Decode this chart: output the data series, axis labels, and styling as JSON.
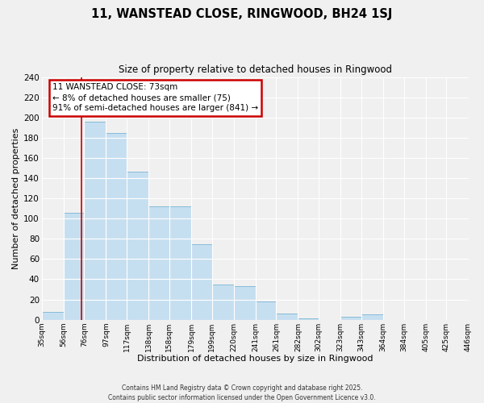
{
  "title": "11, WANSTEAD CLOSE, RINGWOOD, BH24 1SJ",
  "subtitle": "Size of property relative to detached houses in Ringwood",
  "xlabel": "Distribution of detached houses by size in Ringwood",
  "ylabel": "Number of detached properties",
  "bin_edges": [
    35,
    56,
    76,
    97,
    117,
    138,
    158,
    179,
    199,
    220,
    241,
    261,
    282,
    302,
    323,
    343,
    364,
    384,
    405,
    425,
    446
  ],
  "bar_heights": [
    8,
    106,
    196,
    185,
    146,
    112,
    112,
    75,
    35,
    33,
    18,
    6,
    1,
    0,
    3,
    5,
    0,
    0,
    0,
    0,
    1
  ],
  "bar_color": "#c6dff0",
  "bar_edge_color": "#7ab4d4",
  "vline_x": 73,
  "vline_color": "#cc0000",
  "annotation_title": "11 WANSTEAD CLOSE: 73sqm",
  "annotation_line1": "← 8% of detached houses are smaller (75)",
  "annotation_line2": "91% of semi-detached houses are larger (841) →",
  "annotation_box_color": "#ffffff",
  "annotation_box_edge": "#cc0000",
  "ylim": [
    0,
    240
  ],
  "yticks": [
    0,
    20,
    40,
    60,
    80,
    100,
    120,
    140,
    160,
    180,
    200,
    220,
    240
  ],
  "tick_labels": [
    "35sqm",
    "56sqm",
    "76sqm",
    "97sqm",
    "117sqm",
    "138sqm",
    "158sqm",
    "179sqm",
    "199sqm",
    "220sqm",
    "241sqm",
    "261sqm",
    "282sqm",
    "302sqm",
    "323sqm",
    "343sqm",
    "364sqm",
    "384sqm",
    "405sqm",
    "425sqm",
    "446sqm"
  ],
  "footer1": "Contains HM Land Registry data © Crown copyright and database right 2025.",
  "footer2": "Contains public sector information licensed under the Open Government Licence v3.0.",
  "background_color": "#f0f0f0"
}
